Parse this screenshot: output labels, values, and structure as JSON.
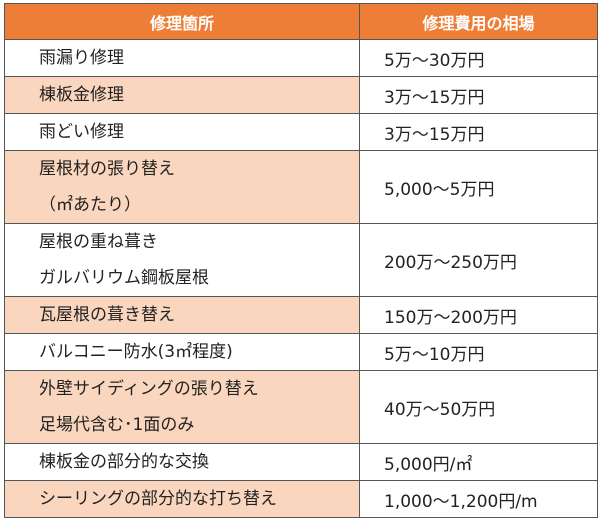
{
  "table": {
    "headers": {
      "area": "修理箇所",
      "cost": "修理費用の相場"
    },
    "rows": [
      {
        "area": [
          "雨漏り修理"
        ],
        "cost": "5万〜30万円"
      },
      {
        "area": [
          "棟板金修理"
        ],
        "cost": "3万〜15万円"
      },
      {
        "area": [
          "雨どい修理"
        ],
        "cost": "3万〜15万円"
      },
      {
        "area": [
          "屋根材の張り替え",
          "（㎡あたり）"
        ],
        "cost": "5,000〜5万円"
      },
      {
        "area": [
          "屋根の重ね葺き",
          "ガルバリウム鋼板屋根"
        ],
        "cost": "200万〜250万円"
      },
      {
        "area": [
          "瓦屋根の葺き替え"
        ],
        "cost": "150万〜200万円"
      },
      {
        "area": [
          "バルコニー防水(3㎡程度)"
        ],
        "cost": "5万〜10万円"
      },
      {
        "area": [
          "外壁サイディングの張り替え",
          "足場代含む･1面のみ"
        ],
        "cost": "40万〜50万円"
      },
      {
        "area": [
          "棟板金の部分的な交換"
        ],
        "cost": "5,000円/㎡"
      },
      {
        "area": [
          "シーリングの部分的な打ち替え"
        ],
        "cost": "1,000〜1,200円/m"
      }
    ],
    "colors": {
      "header": "#ee7d37",
      "shaded_row": "#fbd6be",
      "plain_row": "#ffffff"
    }
  }
}
